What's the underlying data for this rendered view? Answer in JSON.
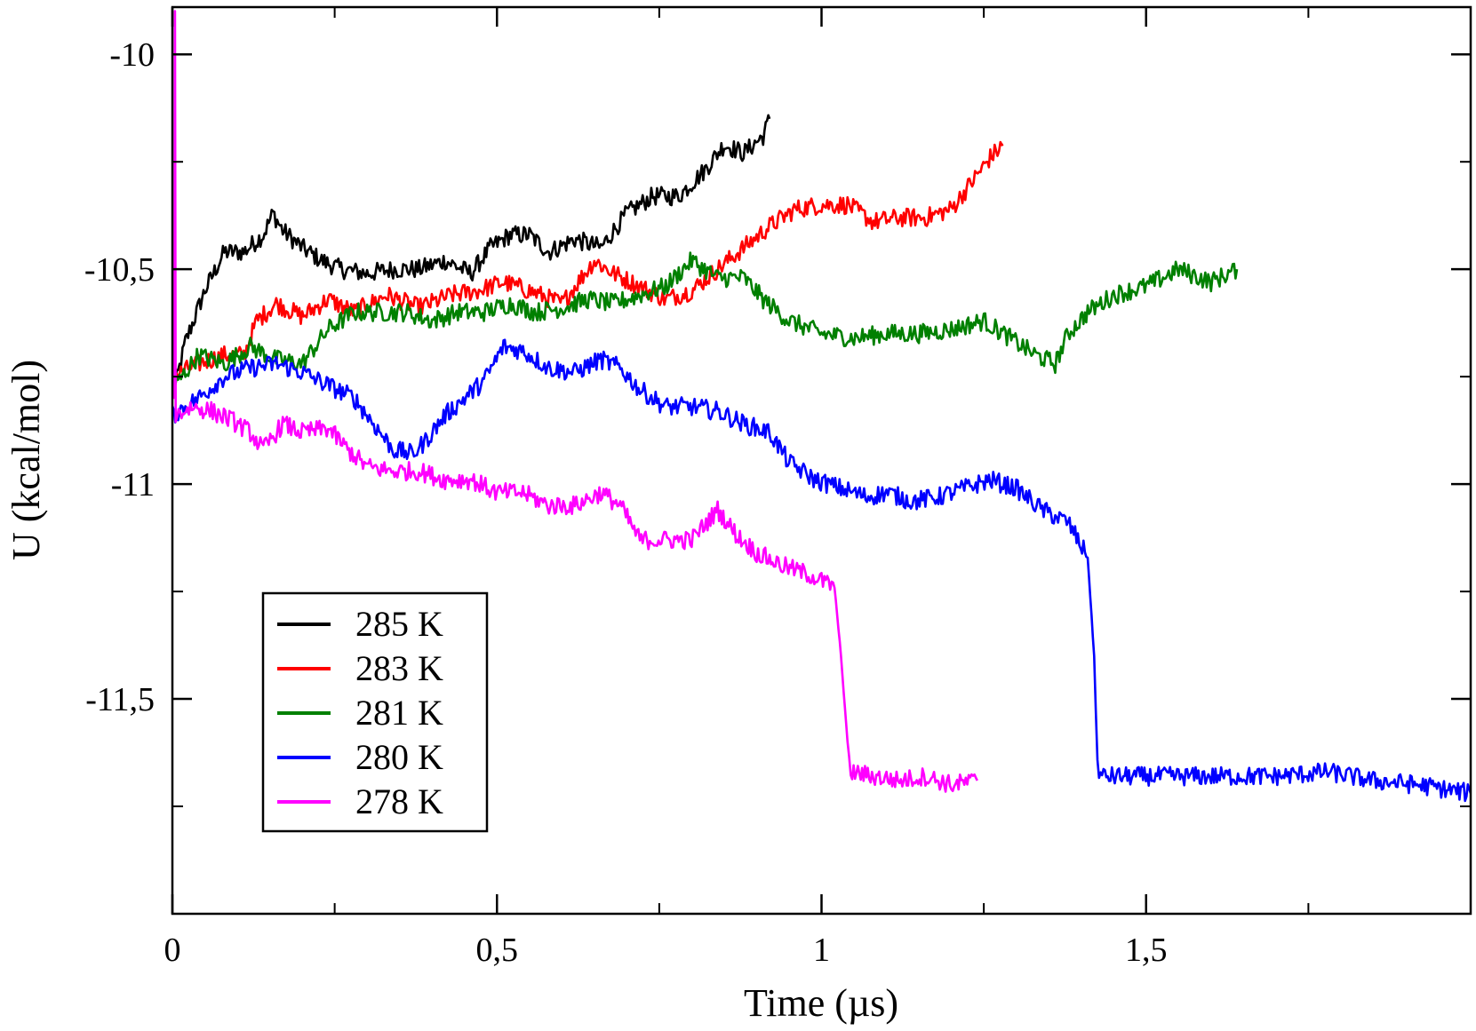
{
  "chart_data": {
    "type": "line",
    "xlabel": "Time (µs)",
    "ylabel": "U (kcal/mol)",
    "xlim": [
      0,
      2.0
    ],
    "ylim": [
      -12.0,
      -9.89
    ],
    "grid": false,
    "legend_position": "bottom-left",
    "x_ticks": [
      {
        "value": 0,
        "label": "0"
      },
      {
        "value": 0.5,
        "label": "0,5"
      },
      {
        "value": 1,
        "label": "1"
      },
      {
        "value": 1.5,
        "label": "1,5"
      }
    ],
    "y_ticks": [
      {
        "value": -10,
        "label": "-10"
      },
      {
        "value": -10.5,
        "label": "-10,5"
      },
      {
        "value": -11,
        "label": "-11"
      },
      {
        "value": -11.5,
        "label": "-11,5"
      }
    ],
    "series": [
      {
        "name": "285 K",
        "color": "#000000",
        "points": [
          [
            0.0,
            -10.8
          ],
          [
            0.02,
            -10.67
          ],
          [
            0.05,
            -10.55
          ],
          [
            0.08,
            -10.46
          ],
          [
            0.11,
            -10.46
          ],
          [
            0.14,
            -10.42
          ],
          [
            0.155,
            -10.37
          ],
          [
            0.17,
            -10.41
          ],
          [
            0.2,
            -10.45
          ],
          [
            0.23,
            -10.48
          ],
          [
            0.26,
            -10.5
          ],
          [
            0.3,
            -10.51
          ],
          [
            0.34,
            -10.5
          ],
          [
            0.38,
            -10.5
          ],
          [
            0.42,
            -10.48
          ],
          [
            0.46,
            -10.51
          ],
          [
            0.49,
            -10.45
          ],
          [
            0.52,
            -10.42
          ],
          [
            0.55,
            -10.42
          ],
          [
            0.58,
            -10.46
          ],
          [
            0.62,
            -10.43
          ],
          [
            0.66,
            -10.45
          ],
          [
            0.7,
            -10.37
          ],
          [
            0.74,
            -10.33
          ],
          [
            0.78,
            -10.33
          ],
          [
            0.82,
            -10.27
          ],
          [
            0.85,
            -10.21
          ],
          [
            0.88,
            -10.23
          ],
          [
            0.91,
            -10.19
          ],
          [
            0.92,
            -10.15
          ]
        ]
      },
      {
        "name": "283 K",
        "color": "#ff0000",
        "points": [
          [
            0.0,
            -10.75
          ],
          [
            0.04,
            -10.72
          ],
          [
            0.08,
            -10.7
          ],
          [
            0.11,
            -10.7
          ],
          [
            0.13,
            -10.62
          ],
          [
            0.16,
            -10.58
          ],
          [
            0.2,
            -10.61
          ],
          [
            0.24,
            -10.57
          ],
          [
            0.28,
            -10.6
          ],
          [
            0.33,
            -10.56
          ],
          [
            0.38,
            -10.59
          ],
          [
            0.43,
            -10.56
          ],
          [
            0.47,
            -10.55
          ],
          [
            0.51,
            -10.53
          ],
          [
            0.55,
            -10.55
          ],
          [
            0.6,
            -10.58
          ],
          [
            0.65,
            -10.48
          ],
          [
            0.68,
            -10.51
          ],
          [
            0.72,
            -10.54
          ],
          [
            0.76,
            -10.57
          ],
          [
            0.8,
            -10.55
          ],
          [
            0.84,
            -10.5
          ],
          [
            0.88,
            -10.45
          ],
          [
            0.92,
            -10.4
          ],
          [
            0.96,
            -10.36
          ],
          [
            1.0,
            -10.35
          ],
          [
            1.04,
            -10.35
          ],
          [
            1.08,
            -10.39
          ],
          [
            1.12,
            -10.38
          ],
          [
            1.16,
            -10.38
          ],
          [
            1.2,
            -10.36
          ],
          [
            1.23,
            -10.3
          ],
          [
            1.26,
            -10.24
          ],
          [
            1.28,
            -10.21
          ]
        ]
      },
      {
        "name": "281 K",
        "color": "#008000",
        "points": [
          [
            0.0,
            -10.78
          ],
          [
            0.04,
            -10.7
          ],
          [
            0.08,
            -10.72
          ],
          [
            0.12,
            -10.68
          ],
          [
            0.16,
            -10.71
          ],
          [
            0.2,
            -10.72
          ],
          [
            0.24,
            -10.64
          ],
          [
            0.28,
            -10.6
          ],
          [
            0.32,
            -10.6
          ],
          [
            0.36,
            -10.6
          ],
          [
            0.4,
            -10.62
          ],
          [
            0.44,
            -10.6
          ],
          [
            0.48,
            -10.6
          ],
          [
            0.52,
            -10.58
          ],
          [
            0.56,
            -10.6
          ],
          [
            0.6,
            -10.59
          ],
          [
            0.64,
            -10.57
          ],
          [
            0.68,
            -10.58
          ],
          [
            0.72,
            -10.56
          ],
          [
            0.76,
            -10.54
          ],
          [
            0.8,
            -10.48
          ],
          [
            0.84,
            -10.52
          ],
          [
            0.88,
            -10.52
          ],
          [
            0.91,
            -10.57
          ],
          [
            0.95,
            -10.62
          ],
          [
            1.0,
            -10.65
          ],
          [
            1.05,
            -10.66
          ],
          [
            1.1,
            -10.65
          ],
          [
            1.15,
            -10.65
          ],
          [
            1.2,
            -10.64
          ],
          [
            1.25,
            -10.62
          ],
          [
            1.29,
            -10.66
          ],
          [
            1.33,
            -10.7
          ],
          [
            1.36,
            -10.72
          ],
          [
            1.38,
            -10.65
          ],
          [
            1.41,
            -10.6
          ],
          [
            1.45,
            -10.56
          ],
          [
            1.5,
            -10.54
          ],
          [
            1.55,
            -10.5
          ],
          [
            1.6,
            -10.53
          ],
          [
            1.64,
            -10.5
          ]
        ]
      },
      {
        "name": "280 K",
        "color": "#0000ff",
        "points": [
          [
            0.0,
            -10.84
          ],
          [
            0.04,
            -10.8
          ],
          [
            0.08,
            -10.75
          ],
          [
            0.12,
            -10.73
          ],
          [
            0.16,
            -10.72
          ],
          [
            0.2,
            -10.74
          ],
          [
            0.24,
            -10.77
          ],
          [
            0.28,
            -10.8
          ],
          [
            0.31,
            -10.86
          ],
          [
            0.34,
            -10.92
          ],
          [
            0.37,
            -10.93
          ],
          [
            0.39,
            -10.9
          ],
          [
            0.42,
            -10.84
          ],
          [
            0.45,
            -10.8
          ],
          [
            0.48,
            -10.76
          ],
          [
            0.51,
            -10.68
          ],
          [
            0.54,
            -10.69
          ],
          [
            0.58,
            -10.73
          ],
          [
            0.62,
            -10.74
          ],
          [
            0.66,
            -10.71
          ],
          [
            0.69,
            -10.73
          ],
          [
            0.72,
            -10.78
          ],
          [
            0.76,
            -10.82
          ],
          [
            0.8,
            -10.82
          ],
          [
            0.84,
            -10.83
          ],
          [
            0.88,
            -10.86
          ],
          [
            0.92,
            -10.88
          ],
          [
            0.95,
            -10.95
          ],
          [
            0.99,
            -10.99
          ],
          [
            1.03,
            -11.01
          ],
          [
            1.07,
            -11.03
          ],
          [
            1.1,
            -11.02
          ],
          [
            1.14,
            -11.04
          ],
          [
            1.18,
            -11.03
          ],
          [
            1.22,
            -11.01
          ],
          [
            1.26,
            -10.99
          ],
          [
            1.3,
            -11.01
          ],
          [
            1.34,
            -11.06
          ],
          [
            1.38,
            -11.09
          ],
          [
            1.41,
            -11.17
          ],
          [
            1.42,
            -11.4
          ],
          [
            1.425,
            -11.65
          ],
          [
            1.43,
            -11.68
          ],
          [
            1.48,
            -11.68
          ],
          [
            1.55,
            -11.68
          ],
          [
            1.62,
            -11.68
          ],
          [
            1.7,
            -11.68
          ],
          [
            1.78,
            -11.67
          ],
          [
            1.85,
            -11.69
          ],
          [
            1.92,
            -11.7
          ],
          [
            2.0,
            -11.72
          ]
        ]
      },
      {
        "name": "278 K",
        "color": "#ff00ff",
        "points": [
          [
            0.003,
            -10.8
          ],
          [
            0.004,
            -9.9
          ],
          [
            0.005,
            -10.84
          ],
          [
            0.03,
            -10.82
          ],
          [
            0.06,
            -10.83
          ],
          [
            0.09,
            -10.85
          ],
          [
            0.12,
            -10.88
          ],
          [
            0.14,
            -10.92
          ],
          [
            0.17,
            -10.86
          ],
          [
            0.2,
            -10.88
          ],
          [
            0.24,
            -10.87
          ],
          [
            0.27,
            -10.92
          ],
          [
            0.3,
            -10.96
          ],
          [
            0.34,
            -10.97
          ],
          [
            0.38,
            -10.97
          ],
          [
            0.42,
            -10.99
          ],
          [
            0.46,
            -10.99
          ],
          [
            0.5,
            -11.02
          ],
          [
            0.54,
            -11.02
          ],
          [
            0.58,
            -11.05
          ],
          [
            0.62,
            -11.05
          ],
          [
            0.66,
            -11.02
          ],
          [
            0.69,
            -11.05
          ],
          [
            0.72,
            -11.13
          ],
          [
            0.76,
            -11.13
          ],
          [
            0.8,
            -11.13
          ],
          [
            0.84,
            -11.06
          ],
          [
            0.87,
            -11.12
          ],
          [
            0.9,
            -11.16
          ],
          [
            0.94,
            -11.19
          ],
          [
            0.98,
            -11.21
          ],
          [
            1.02,
            -11.24
          ],
          [
            1.03,
            -11.4
          ],
          [
            1.04,
            -11.6
          ],
          [
            1.045,
            -11.67
          ],
          [
            1.08,
            -11.68
          ],
          [
            1.12,
            -11.69
          ],
          [
            1.16,
            -11.68
          ],
          [
            1.2,
            -11.7
          ],
          [
            1.24,
            -11.69
          ]
        ]
      }
    ]
  }
}
